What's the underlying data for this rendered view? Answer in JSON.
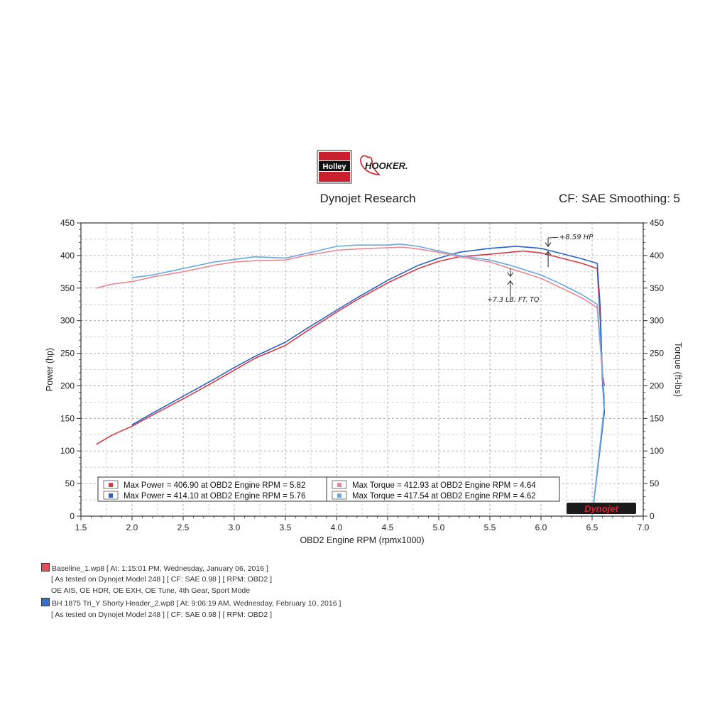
{
  "header": {
    "brand_holley": "Holley",
    "brand_hooker": "HOOKER.",
    "lab": "Dynojet Research",
    "settings": "CF: SAE Smoothing: 5"
  },
  "chart_data": {
    "type": "line",
    "xlabel": "OBD2 Engine RPM (rpmx1000)",
    "ylabel": "Power (hp)",
    "y2label": "Torque (ft-lbs)",
    "xlim": [
      1.5,
      7.0
    ],
    "ylim": [
      0,
      450
    ],
    "y2lim": [
      0,
      450
    ],
    "xticks": [
      "1.5",
      "2.0",
      "2.5",
      "3.0",
      "3.5",
      "4.0",
      "4.5",
      "5.0",
      "5.5",
      "6.0",
      "6.5",
      "7.0"
    ],
    "yticks": [
      "0",
      "50",
      "100",
      "150",
      "200",
      "250",
      "300",
      "350",
      "400",
      "450"
    ],
    "grid": true,
    "colors": {
      "baseline_power": "#d83a48",
      "header_power": "#2a63c8",
      "baseline_torque": "#e88a96",
      "header_torque": "#6aa8e0"
    },
    "series": [
      {
        "name": "Max Power = 406.90 at OBD2 Engine RPM = 5.82",
        "axis": "left",
        "x": [
          1.65,
          1.8,
          2.0,
          2.2,
          2.5,
          2.8,
          3.0,
          3.2,
          3.5,
          3.7,
          4.0,
          4.2,
          4.5,
          4.8,
          5.0,
          5.2,
          5.5,
          5.7,
          5.82,
          6.0,
          6.2,
          6.4,
          6.55,
          6.58,
          6.6,
          6.62
        ],
        "values": [
          110,
          124,
          138,
          155,
          180,
          206,
          224,
          242,
          262,
          283,
          313,
          332,
          358,
          380,
          391,
          398,
          402,
          405,
          406.9,
          404,
          396,
          388,
          380,
          300,
          220,
          200
        ]
      },
      {
        "name": "Max Power = 414.10 at OBD2 Engine RPM = 5.76",
        "axis": "left",
        "x": [
          2.0,
          2.2,
          2.5,
          2.8,
          3.0,
          3.2,
          3.5,
          3.7,
          4.0,
          4.2,
          4.5,
          4.8,
          5.0,
          5.2,
          5.5,
          5.76,
          6.0,
          6.2,
          6.4,
          6.55,
          6.58,
          6.6,
          6.62,
          6.5
        ],
        "values": [
          140,
          158,
          184,
          210,
          228,
          245,
          267,
          287,
          316,
          335,
          362,
          385,
          396,
          405,
          411,
          414.1,
          411,
          403,
          395,
          388,
          320,
          210,
          160,
          0
        ]
      },
      {
        "name": "Max Torque = 412.93 at OBD2 Engine RPM = 4.64",
        "axis": "right",
        "x": [
          1.65,
          1.8,
          2.0,
          2.2,
          2.5,
          2.8,
          3.0,
          3.2,
          3.5,
          3.7,
          4.0,
          4.2,
          4.5,
          4.64,
          4.8,
          5.0,
          5.2,
          5.5,
          5.7,
          6.0,
          6.2,
          6.4,
          6.55,
          6.6,
          6.62
        ],
        "values": [
          350,
          356,
          360,
          367,
          375,
          385,
          390,
          392,
          393,
          400,
          408,
          410,
          412,
          412.93,
          410,
          405,
          398,
          390,
          380,
          365,
          350,
          335,
          320,
          220,
          180
        ]
      },
      {
        "name": "Max Torque = 417.54 at OBD2 Engine RPM = 4.62",
        "axis": "right",
        "x": [
          2.0,
          2.2,
          2.5,
          2.8,
          3.0,
          3.2,
          3.5,
          3.7,
          4.0,
          4.2,
          4.5,
          4.62,
          4.8,
          5.0,
          5.2,
          5.5,
          5.7,
          6.0,
          6.2,
          6.4,
          6.55,
          6.6,
          6.62,
          6.5
        ],
        "values": [
          366,
          370,
          380,
          390,
          394,
          398,
          396,
          403,
          414,
          416,
          416,
          417.54,
          414,
          407,
          400,
          393,
          385,
          370,
          356,
          340,
          325,
          230,
          170,
          0
        ]
      }
    ],
    "legend_entries": [
      {
        "label": "Max Power = 406.90 at OBD2 Engine RPM = 5.82",
        "color": "#d83a48"
      },
      {
        "label": "Max Power = 414.10 at OBD2 Engine RPM = 5.76",
        "color": "#2a63c8"
      },
      {
        "label": "Max Torque = 412.93 at OBD2 Engine RPM = 4.64",
        "color": "#e88a96"
      },
      {
        "label": "Max Torque = 417.54 at OBD2 Engine RPM = 4.62",
        "color": "#6aa8e0"
      }
    ],
    "annotations": [
      {
        "text": "+8.59 HP",
        "x": 6.05,
        "y": 425
      },
      {
        "text": "+7.3 LB. FT. TQ",
        "x": 5.5,
        "y": 325
      }
    ],
    "logo": "Dynojet"
  },
  "runs": [
    {
      "color": "#e0505a",
      "line1": "Baseline_1.wp8 [ At: 1:15:01 PM, Wednesday, January 06, 2016 ]",
      "line2": "[ As tested on Dynojet Model 248 ]  [ CF: SAE 0.98 ]  [ RPM: OBD2 ]",
      "line3": "OE AIS, OE HDR, OE EXH, OE Tune, 4th Gear, Sport Mode"
    },
    {
      "color": "#3a6fc8",
      "line1": "BH 1875 Tri_Y Shorty Header_2.wp8 [ At: 9:06:19 AM, Wednesday, February 10, 2016 ]",
      "line2": "[ As tested on Dynojet Model 248 ]  [ CF: SAE 0.98 ]  [ RPM: OBD2 ]"
    }
  ]
}
